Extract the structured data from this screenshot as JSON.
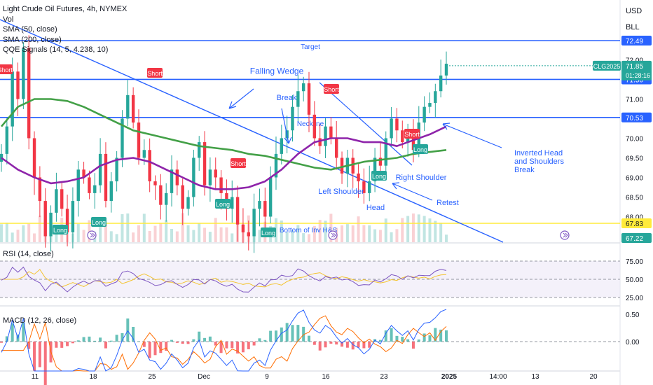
{
  "title": "Light Crude Oil Futures, 4h, NYMEX",
  "legend": [
    "Vol",
    "SMA (50, close)",
    "SMA (200, close)",
    "QQE Signals (14, 5, 4.238, 10)"
  ],
  "currency": [
    "USD",
    "BLL"
  ],
  "price_axis": {
    "ticks": [
      "72.00",
      "71.00",
      "70.00",
      "69.50",
      "69.00",
      "68.50",
      "68.00"
    ],
    "badges": [
      {
        "label": "72.49",
        "color": "#2962ff",
        "text_color": "#ffffff"
      },
      {
        "label": "71.50",
        "color": "#2962ff",
        "text_color": "#ffffff"
      },
      {
        "label": "70.53",
        "color": "#2962ff",
        "text_color": "#ffffff"
      },
      {
        "label": "67.83",
        "color": "#ffeb3b",
        "text_color": "#131722"
      },
      {
        "label": "67.22",
        "color": "#26a69a",
        "text_color": "#ffffff"
      }
    ],
    "current": {
      "symbol": "CLG2025",
      "price": "71.85",
      "countdown": "01:28:16",
      "color": "#26a69a"
    }
  },
  "levels": [
    {
      "value": 72.49,
      "color": "#2962ff",
      "label": "Target"
    },
    {
      "value": 71.5,
      "color": "#2962ff",
      "label": "Falling Wedge"
    },
    {
      "value": 70.53,
      "color": "#2962ff",
      "label": "Neckline"
    },
    {
      "value": 67.83,
      "color": "#ffeb3b",
      "label": "Bottom of Inv H&S"
    }
  ],
  "annotations": [
    "Break",
    "Left Shoulder",
    "Head",
    "Right Shoulder",
    "Retest",
    "Inverted Head\nand Shoulders\nBreak"
  ],
  "signals": [
    {
      "label": "Short",
      "color": "#f23645"
    },
    {
      "label": "Short",
      "color": "#f23645"
    },
    {
      "label": "Short",
      "color": "#f23645"
    },
    {
      "label": "Short",
      "color": "#f23645"
    },
    {
      "label": "Short",
      "color": "#f23645"
    },
    {
      "label": "Long",
      "color": "#26a69a"
    },
    {
      "label": "Long",
      "color": "#26a69a"
    },
    {
      "label": "Long",
      "color": "#26a69a"
    },
    {
      "label": "Long",
      "color": "#26a69a"
    },
    {
      "label": "Long",
      "color": "#26a69a"
    },
    {
      "label": "Long",
      "color": "#26a69a"
    }
  ],
  "rsi": {
    "label": "RSI (14, close)",
    "ticks": [
      "75.00",
      "50.00",
      "25.00"
    ]
  },
  "macd": {
    "label": "MACD (12, 26, close)",
    "ticks": [
      "0.50",
      "0.00"
    ]
  },
  "time_axis": [
    "11",
    "18",
    "25",
    "Dec",
    "9",
    "16",
    "23",
    "2025",
    "14:00",
    "13",
    "20"
  ],
  "chart_data": {
    "type": "candlestick",
    "x_range": [
      "Nov 7 2024",
      "Jan 22 2025"
    ],
    "ylim": [
      67.2,
      72.8
    ],
    "close_series": [
      69.6,
      70.3,
      71.7,
      71.0,
      72.3,
      70.0,
      69.0,
      68.4,
      67.5,
      68.1,
      68.7,
      68.2,
      67.6,
      68.4,
      69.2,
      69.0,
      68.6,
      68.8,
      69.6,
      68.4,
      68.9,
      69.5,
      70.5,
      71.1,
      70.4,
      69.5,
      69.7,
      68.9,
      68.8,
      68.3,
      68.6,
      69.2,
      68.8,
      68.2,
      68.5,
      69.5,
      69.9,
      68.8,
      69.2,
      69.0,
      68.6,
      68.2,
      68.5,
      67.8,
      67.6,
      67.5,
      68.2,
      68.4,
      68.0,
      69.0,
      69.6,
      70.0,
      70.2,
      70.8,
      71.2,
      71.4,
      70.6,
      70.0,
      69.8,
      70.3,
      70.0,
      69.5,
      69.1,
      69.5,
      69.1,
      68.9,
      68.6,
      68.9,
      69.5,
      69.3,
      70.0,
      70.5,
      70.2,
      69.9,
      70.2,
      69.7,
      70.4,
      70.8,
      70.9,
      71.2,
      71.6,
      71.9
    ],
    "sma50": [
      70.3,
      70.8,
      71.0,
      71.0,
      70.95,
      70.8,
      70.6,
      70.4,
      70.2,
      70.1,
      70.0,
      69.9,
      69.8,
      69.75,
      69.7,
      69.6,
      69.55,
      69.45,
      69.35,
      69.25,
      69.2,
      69.3,
      69.4,
      69.45,
      69.5,
      69.6,
      69.65,
      69.7
    ],
    "sma200": [
      69.5,
      69.2,
      69.0,
      68.85,
      68.9,
      69.0,
      69.3,
      69.45,
      69.5,
      69.4,
      69.2,
      69.0,
      68.8,
      68.7,
      68.7,
      68.75,
      68.9,
      69.2,
      69.6,
      69.9,
      70.0,
      70.0,
      69.9,
      69.9,
      69.8,
      69.95,
      70.1,
      70.3
    ]
  }
}
